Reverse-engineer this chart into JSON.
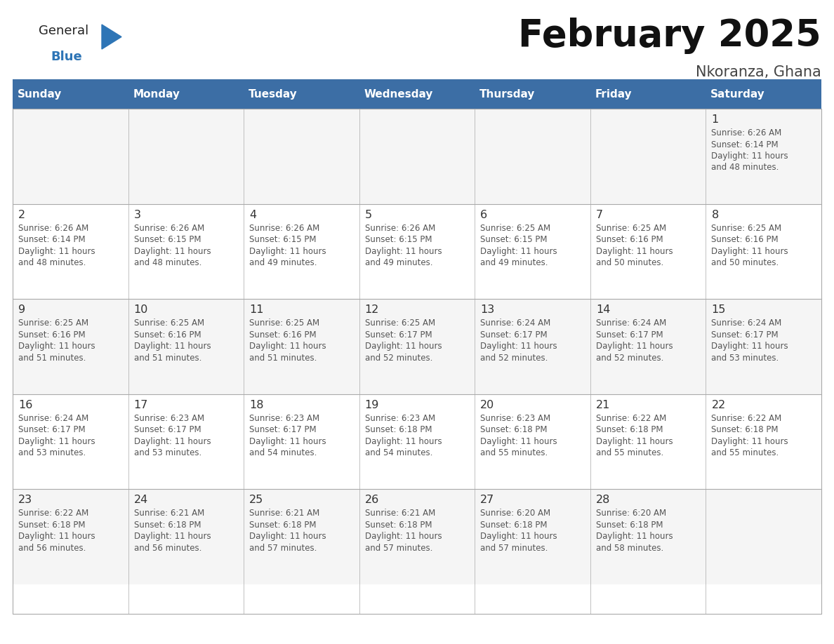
{
  "title": "February 2025",
  "subtitle": "Nkoranza, Ghana",
  "days_of_week": [
    "Sunday",
    "Monday",
    "Tuesday",
    "Wednesday",
    "Thursday",
    "Friday",
    "Saturday"
  ],
  "header_bg": "#3C6EA5",
  "header_text_color": "#FFFFFF",
  "cell_bg_row0": "#F5F5F5",
  "cell_bg_row1": "#FFFFFF",
  "cell_bg_row2": "#F5F5F5",
  "cell_bg_row3": "#FFFFFF",
  "cell_bg_row4": "#F5F5F5",
  "border_color": "#AAAAAA",
  "header_border_color": "#2C5282",
  "day_num_color": "#333333",
  "info_text_color": "#555555",
  "title_color": "#111111",
  "subtitle_color": "#444444",
  "logo_general_color": "#222222",
  "logo_blue_color": "#2E75B6",
  "sep_line_color": "#3C6EA5",
  "calendar_data": [
    [
      null,
      null,
      null,
      null,
      null,
      null,
      1
    ],
    [
      2,
      3,
      4,
      5,
      6,
      7,
      8
    ],
    [
      9,
      10,
      11,
      12,
      13,
      14,
      15
    ],
    [
      16,
      17,
      18,
      19,
      20,
      21,
      22
    ],
    [
      23,
      24,
      25,
      26,
      27,
      28,
      null
    ]
  ],
  "sunrise_data": {
    "1": "6:26 AM",
    "2": "6:26 AM",
    "3": "6:26 AM",
    "4": "6:26 AM",
    "5": "6:26 AM",
    "6": "6:25 AM",
    "7": "6:25 AM",
    "8": "6:25 AM",
    "9": "6:25 AM",
    "10": "6:25 AM",
    "11": "6:25 AM",
    "12": "6:25 AM",
    "13": "6:24 AM",
    "14": "6:24 AM",
    "15": "6:24 AM",
    "16": "6:24 AM",
    "17": "6:23 AM",
    "18": "6:23 AM",
    "19": "6:23 AM",
    "20": "6:23 AM",
    "21": "6:22 AM",
    "22": "6:22 AM",
    "23": "6:22 AM",
    "24": "6:21 AM",
    "25": "6:21 AM",
    "26": "6:21 AM",
    "27": "6:20 AM",
    "28": "6:20 AM"
  },
  "sunset_data": {
    "1": "6:14 PM",
    "2": "6:14 PM",
    "3": "6:15 PM",
    "4": "6:15 PM",
    "5": "6:15 PM",
    "6": "6:15 PM",
    "7": "6:16 PM",
    "8": "6:16 PM",
    "9": "6:16 PM",
    "10": "6:16 PM",
    "11": "6:16 PM",
    "12": "6:17 PM",
    "13": "6:17 PM",
    "14": "6:17 PM",
    "15": "6:17 PM",
    "16": "6:17 PM",
    "17": "6:17 PM",
    "18": "6:17 PM",
    "19": "6:18 PM",
    "20": "6:18 PM",
    "21": "6:18 PM",
    "22": "6:18 PM",
    "23": "6:18 PM",
    "24": "6:18 PM",
    "25": "6:18 PM",
    "26": "6:18 PM",
    "27": "6:18 PM",
    "28": "6:18 PM"
  },
  "daylight_data": {
    "1": "11 hours and 48 minutes.",
    "2": "11 hours and 48 minutes.",
    "3": "11 hours and 48 minutes.",
    "4": "11 hours and 49 minutes.",
    "5": "11 hours and 49 minutes.",
    "6": "11 hours and 49 minutes.",
    "7": "11 hours and 50 minutes.",
    "8": "11 hours and 50 minutes.",
    "9": "11 hours and 51 minutes.",
    "10": "11 hours and 51 minutes.",
    "11": "11 hours and 51 minutes.",
    "12": "11 hours and 52 minutes.",
    "13": "11 hours and 52 minutes.",
    "14": "11 hours and 52 minutes.",
    "15": "11 hours and 53 minutes.",
    "16": "11 hours and 53 minutes.",
    "17": "11 hours and 53 minutes.",
    "18": "11 hours and 54 minutes.",
    "19": "11 hours and 54 minutes.",
    "20": "11 hours and 55 minutes.",
    "21": "11 hours and 55 minutes.",
    "22": "11 hours and 55 minutes.",
    "23": "11 hours and 56 minutes.",
    "24": "11 hours and 56 minutes.",
    "25": "11 hours and 57 minutes.",
    "26": "11 hours and 57 minutes.",
    "27": "11 hours and 57 minutes.",
    "28": "11 hours and 58 minutes."
  }
}
